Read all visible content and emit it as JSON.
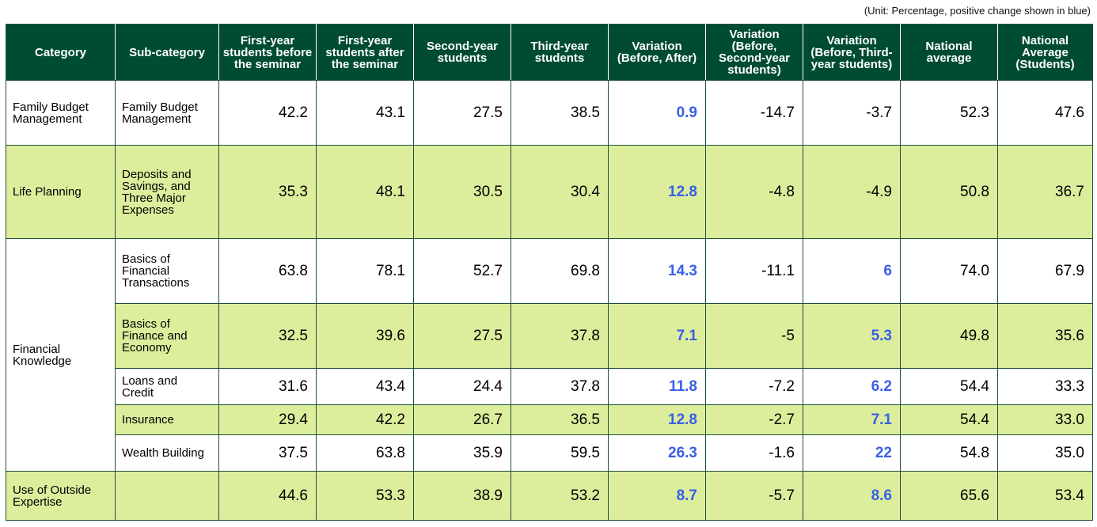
{
  "note": "(Unit: Percentage, positive change shown in blue)",
  "colors": {
    "header_bg": "#004c33",
    "header_text": "#ffffff",
    "band_green": "#dcee9c",
    "positive_blue": "#3a5ee6",
    "border": "#1f4f35"
  },
  "headers": [
    "Category",
    "Sub-category",
    "First-year students before the seminar",
    "First-year students after the seminar",
    "Second-year students",
    "Third-year students",
    "Variation (Before, After)",
    "Variation (Before, Second-year students)",
    "Variation (Before, Third-year students)",
    "National average",
    "National Average (Students)"
  ],
  "rows": [
    {
      "category": "Family Budget Management",
      "subcategory": "Family Budget Management",
      "values": [
        "42.2",
        "43.1",
        "27.5",
        "38.5",
        "0.9",
        "-14.7",
        "-3.7",
        "52.3",
        "47.6"
      ]
    },
    {
      "category": "Life Planning",
      "subcategory": "Deposits and Savings, and Three Major Expenses",
      "values": [
        "35.3",
        "48.1",
        "30.5",
        "30.4",
        "12.8",
        "-4.8",
        "-4.9",
        "50.8",
        "36.7"
      ]
    },
    {
      "category": "Financial Knowledge",
      "subcategory": "Basics of Financial Transactions",
      "values": [
        "63.8",
        "78.1",
        "52.7",
        "69.8",
        "14.3",
        "-11.1",
        "6",
        "74.0",
        "67.9"
      ]
    },
    {
      "category": "",
      "subcategory": "Basics of Finance and Economy",
      "values": [
        "32.5",
        "39.6",
        "27.5",
        "37.8",
        "7.1",
        "-5",
        "5.3",
        "49.8",
        "35.6"
      ]
    },
    {
      "category": "",
      "subcategory": "Loans and Credit",
      "values": [
        "31.6",
        "43.4",
        "24.4",
        "37.8",
        "11.8",
        "-7.2",
        "6.2",
        "54.4",
        "33.3"
      ]
    },
    {
      "category": "",
      "subcategory": "Insurance",
      "values": [
        "29.4",
        "42.2",
        "26.7",
        "36.5",
        "12.8",
        "-2.7",
        "7.1",
        "54.4",
        "33.0"
      ]
    },
    {
      "category": "",
      "subcategory": "Wealth Building",
      "values": [
        "37.5",
        "63.8",
        "35.9",
        "59.5",
        "26.3",
        "-1.6",
        "22",
        "54.8",
        "35.0"
      ]
    },
    {
      "category": "Use of Outside Expertise",
      "subcategory": "",
      "values": [
        "44.6",
        "53.3",
        "38.9",
        "53.2",
        "8.7",
        "-5.7",
        "8.6",
        "65.6",
        "53.4"
      ]
    }
  ]
}
